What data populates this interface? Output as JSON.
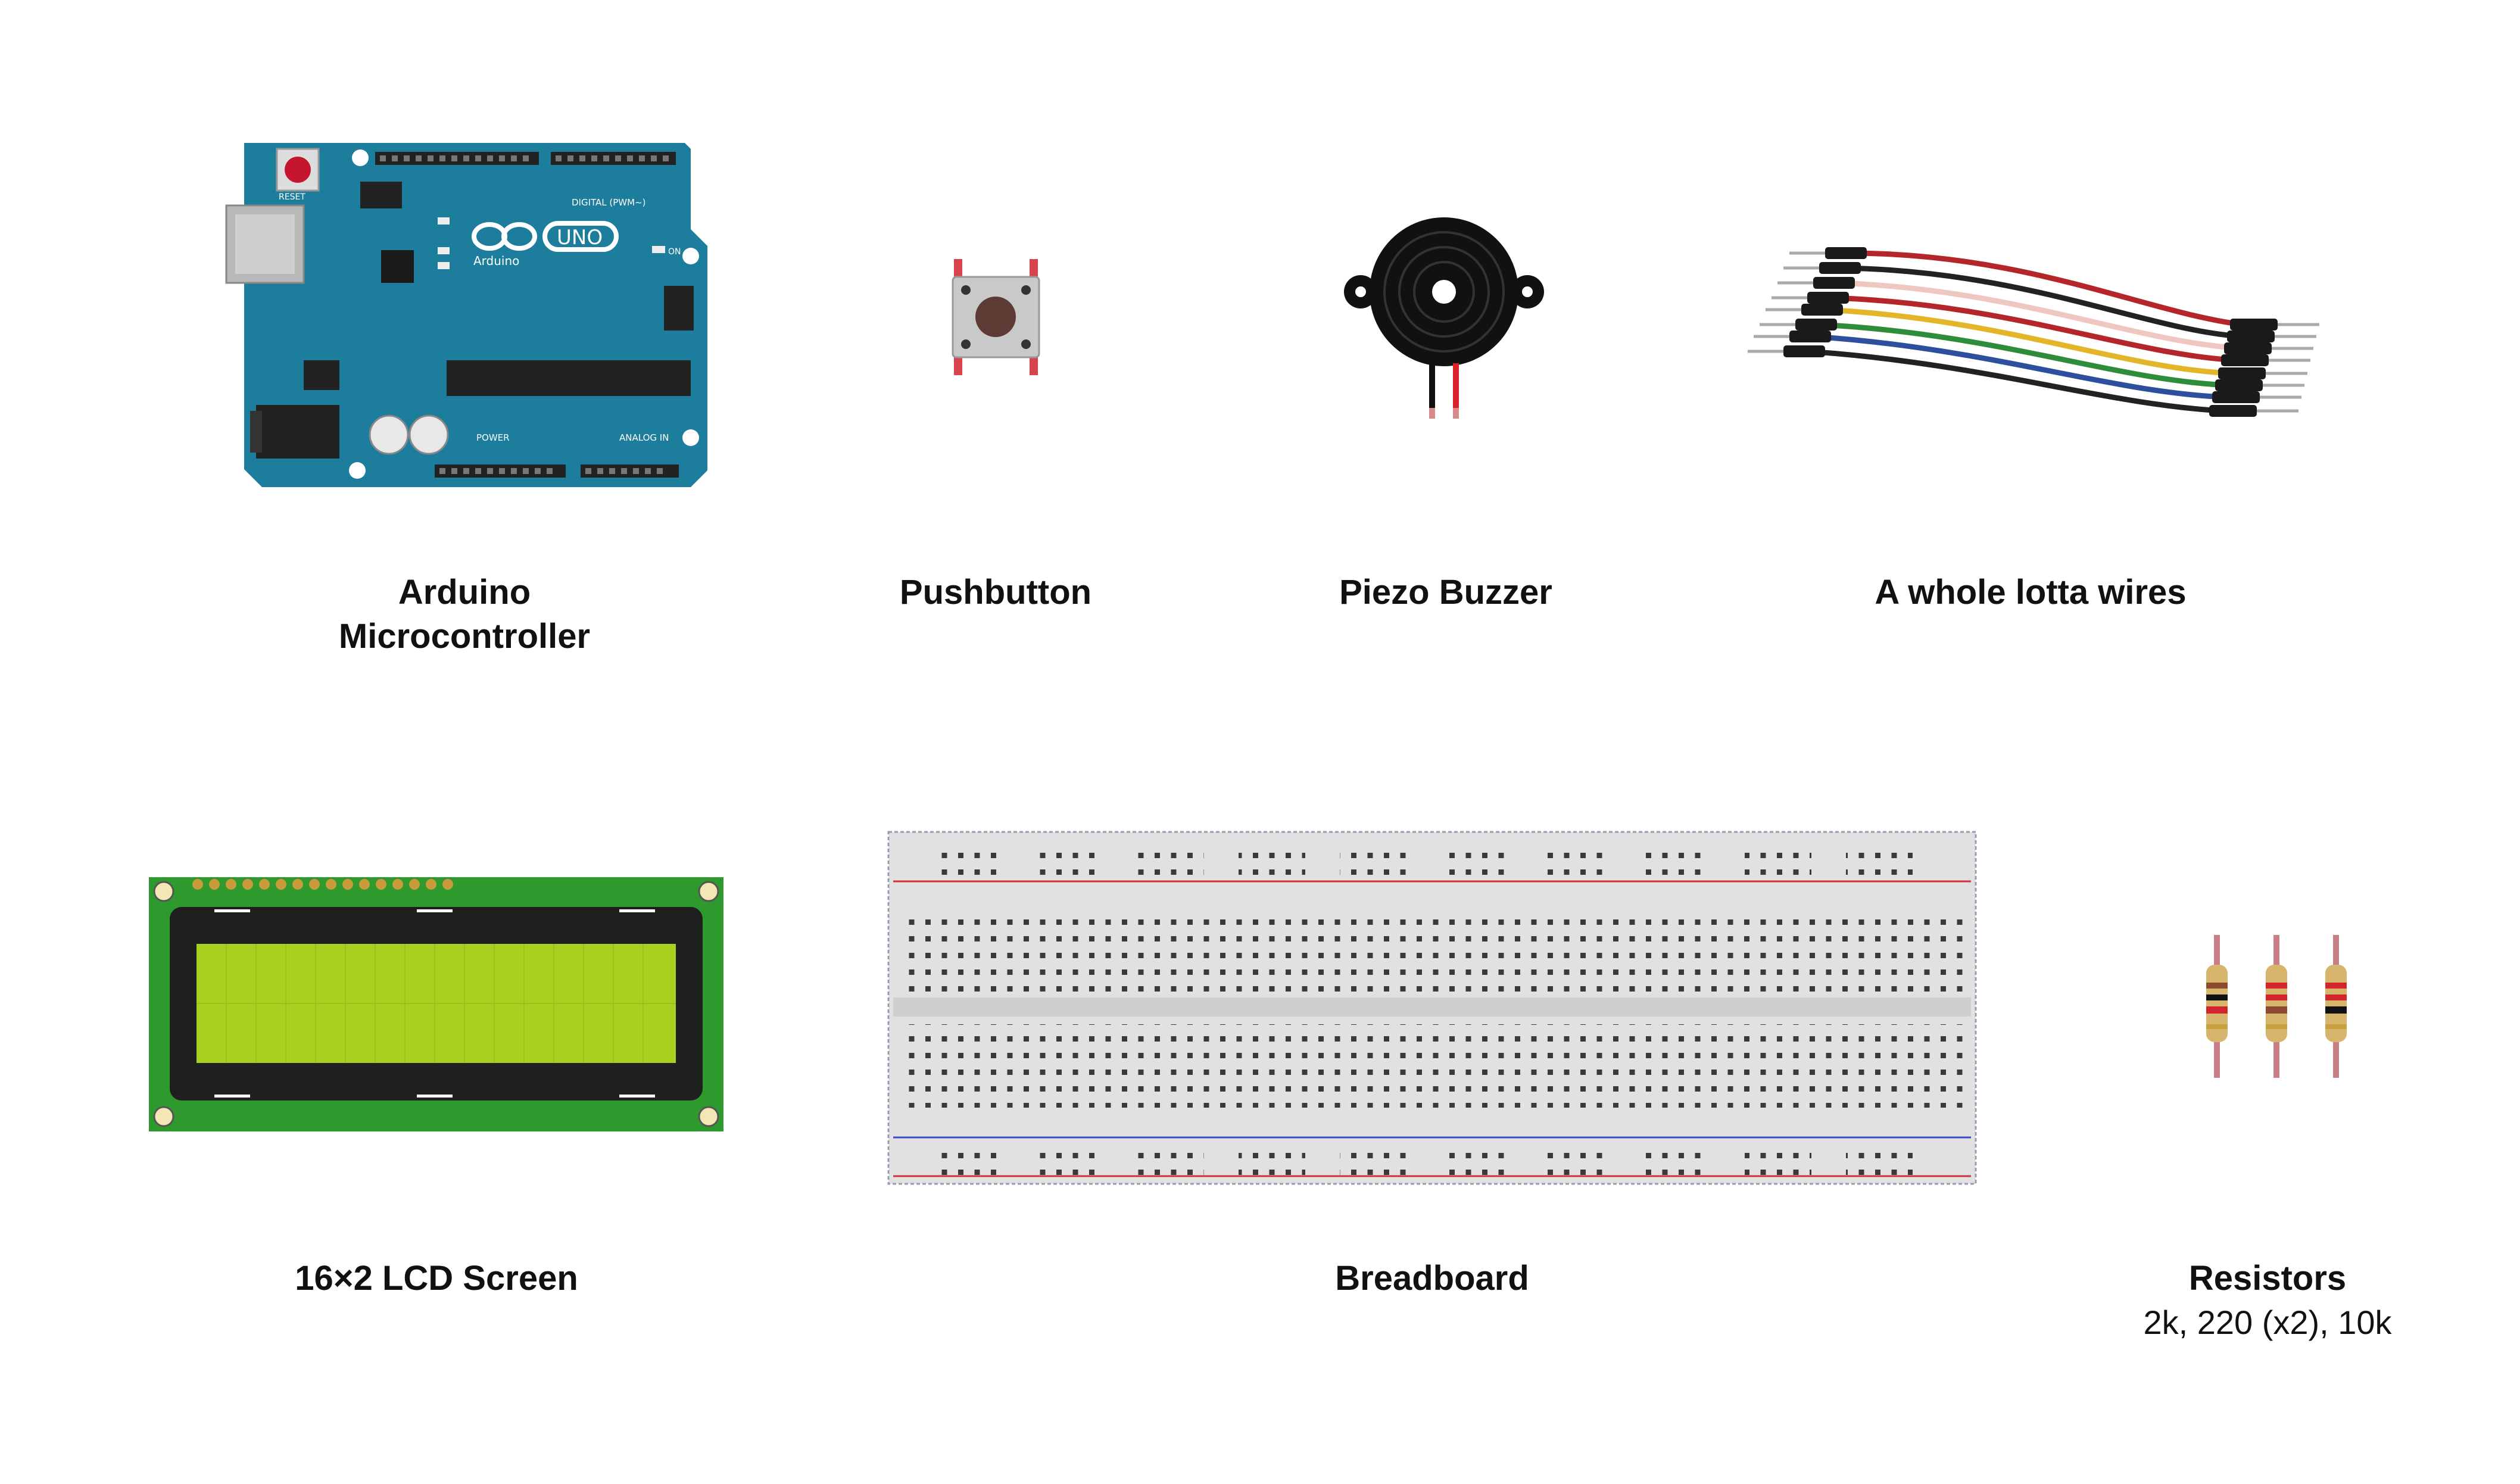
{
  "components": {
    "arduino": {
      "label_line1": "Arduino",
      "label_line2": "Microcontroller",
      "board_text": "Arduino",
      "board_model": "UNO",
      "reset_text": "RESET",
      "on_text": "ON",
      "digital_text": "DIGITAL (PWM~)",
      "analog_text": "ANALOG IN",
      "power_text": "POWER"
    },
    "pushbutton": {
      "label": "Pushbutton"
    },
    "piezo": {
      "label": "Piezo Buzzer"
    },
    "wires": {
      "label": "A whole lotta wires"
    },
    "lcd": {
      "label": "16×2 LCD Screen"
    },
    "breadboard": {
      "label": "Breadboard"
    },
    "resistors": {
      "label": "Resistors",
      "values": "2k, 220 (x2), 10k"
    }
  }
}
